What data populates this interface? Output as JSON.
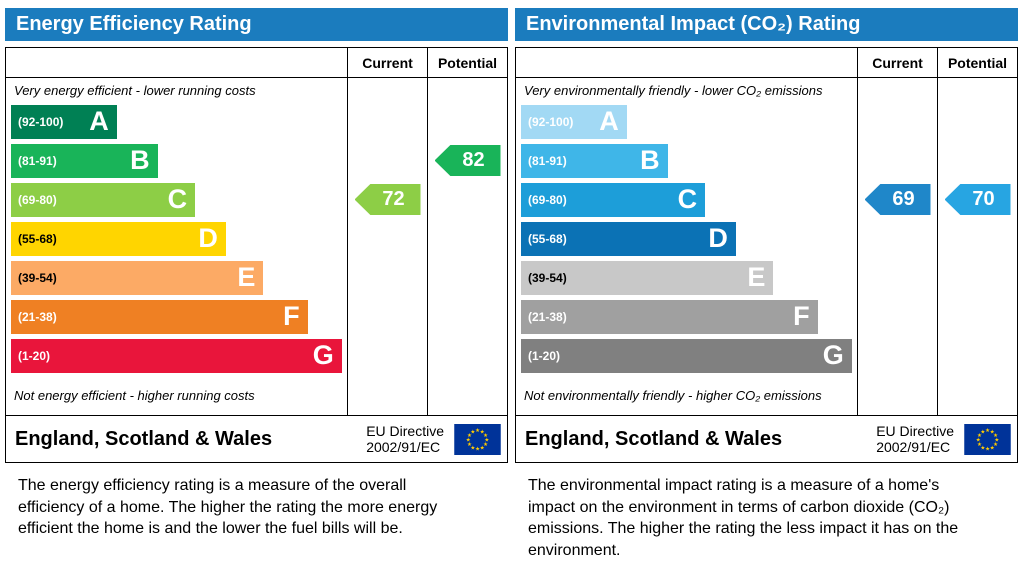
{
  "charts": [
    {
      "title": "Energy Efficiency Rating",
      "header_bg": "#1b7cbe",
      "columns": {
        "current": "Current",
        "potential": "Potential"
      },
      "top_caption": "Very energy efficient - lower running costs",
      "bottom_caption": "Not energy efficient - higher running costs",
      "bands": [
        {
          "letter": "A",
          "range": "(92-100)",
          "color": "#008054",
          "text_color": "#ffffff",
          "width_pct": 31
        },
        {
          "letter": "B",
          "range": "(81-91)",
          "color": "#19b459",
          "text_color": "#ffffff",
          "width_pct": 43
        },
        {
          "letter": "C",
          "range": "(69-80)",
          "color": "#8dce46",
          "text_color": "#ffffff",
          "width_pct": 54
        },
        {
          "letter": "D",
          "range": "(55-68)",
          "color": "#ffd500",
          "text_color": "#000000",
          "width_pct": 63
        },
        {
          "letter": "E",
          "range": "(39-54)",
          "color": "#fcaa65",
          "text_color": "#000000",
          "width_pct": 74
        },
        {
          "letter": "F",
          "range": "(21-38)",
          "color": "#ef8023",
          "text_color": "#ffffff",
          "width_pct": 87
        },
        {
          "letter": "G",
          "range": "(1-20)",
          "color": "#e9153b",
          "text_color": "#ffffff",
          "width_pct": 97
        }
      ],
      "current": {
        "value": "72",
        "band": "C",
        "color": "#8dce46"
      },
      "potential": {
        "value": "82",
        "band": "B",
        "color": "#19b459"
      },
      "footer": {
        "region": "England, Scotland & Wales",
        "directive_line1": "EU Directive",
        "directive_line2": "2002/91/EC"
      },
      "description": "The energy efficiency rating is a measure of the overall efficiency of a home. The higher the rating the more energy efficient the home is and the lower the fuel bills will be."
    },
    {
      "title": "Environmental Impact (CO₂) Rating",
      "header_bg": "#1b7cbe",
      "columns": {
        "current": "Current",
        "potential": "Potential"
      },
      "top_caption": "Very environmentally friendly - lower CO₂ emissions",
      "bottom_caption": "Not environmentally friendly - higher CO₂ emissions",
      "bands": [
        {
          "letter": "A",
          "range": "(92-100)",
          "color": "#a2d9f4",
          "text_color": "#ffffff",
          "width_pct": 31
        },
        {
          "letter": "B",
          "range": "(81-91)",
          "color": "#3fb6e8",
          "text_color": "#ffffff",
          "width_pct": 43
        },
        {
          "letter": "C",
          "range": "(69-80)",
          "color": "#1d9ed9",
          "text_color": "#ffffff",
          "width_pct": 54
        },
        {
          "letter": "D",
          "range": "(55-68)",
          "color": "#0b72b5",
          "text_color": "#ffffff",
          "width_pct": 63
        },
        {
          "letter": "E",
          "range": "(39-54)",
          "color": "#c8c8c8",
          "text_color": "#000000",
          "width_pct": 74
        },
        {
          "letter": "F",
          "range": "(21-38)",
          "color": "#a0a0a0",
          "text_color": "#ffffff",
          "width_pct": 87
        },
        {
          "letter": "G",
          "range": "(1-20)",
          "color": "#808080",
          "text_color": "#ffffff",
          "width_pct": 97
        }
      ],
      "current": {
        "value": "69",
        "band": "C",
        "color": "#1f87c9"
      },
      "potential": {
        "value": "70",
        "band": "C",
        "color": "#27a5e2"
      },
      "footer": {
        "region": "England, Scotland & Wales",
        "directive_line1": "EU Directive",
        "directive_line2": "2002/91/EC"
      },
      "description": "The environmental impact rating is a measure of a home's impact on the environment in terms of carbon dioxide (CO₂) emissions. The higher the rating the less impact it has on the environment."
    }
  ],
  "flag": {
    "bg": "#003399",
    "star_color": "#ffcc00"
  },
  "chart_data": [
    {
      "type": "bar",
      "title": "Energy Efficiency Rating",
      "categories": [
        "A (92-100)",
        "B (81-91)",
        "C (69-80)",
        "D (55-68)",
        "E (39-54)",
        "F (21-38)",
        "G (1-20)"
      ],
      "series": [
        {
          "name": "Current",
          "value": 72,
          "band": "C"
        },
        {
          "name": "Potential",
          "value": 82,
          "band": "B"
        }
      ],
      "scale_range": [
        1,
        100
      ],
      "footer": "England, Scotland & Wales — EU Directive 2002/91/EC"
    },
    {
      "type": "bar",
      "title": "Environmental Impact (CO₂) Rating",
      "categories": [
        "A (92-100)",
        "B (81-91)",
        "C (69-80)",
        "D (55-68)",
        "E (39-54)",
        "F (21-38)",
        "G (1-20)"
      ],
      "series": [
        {
          "name": "Current",
          "value": 69,
          "band": "C"
        },
        {
          "name": "Potential",
          "value": 70,
          "band": "C"
        }
      ],
      "scale_range": [
        1,
        100
      ],
      "footer": "England, Scotland & Wales — EU Directive 2002/91/EC"
    }
  ]
}
